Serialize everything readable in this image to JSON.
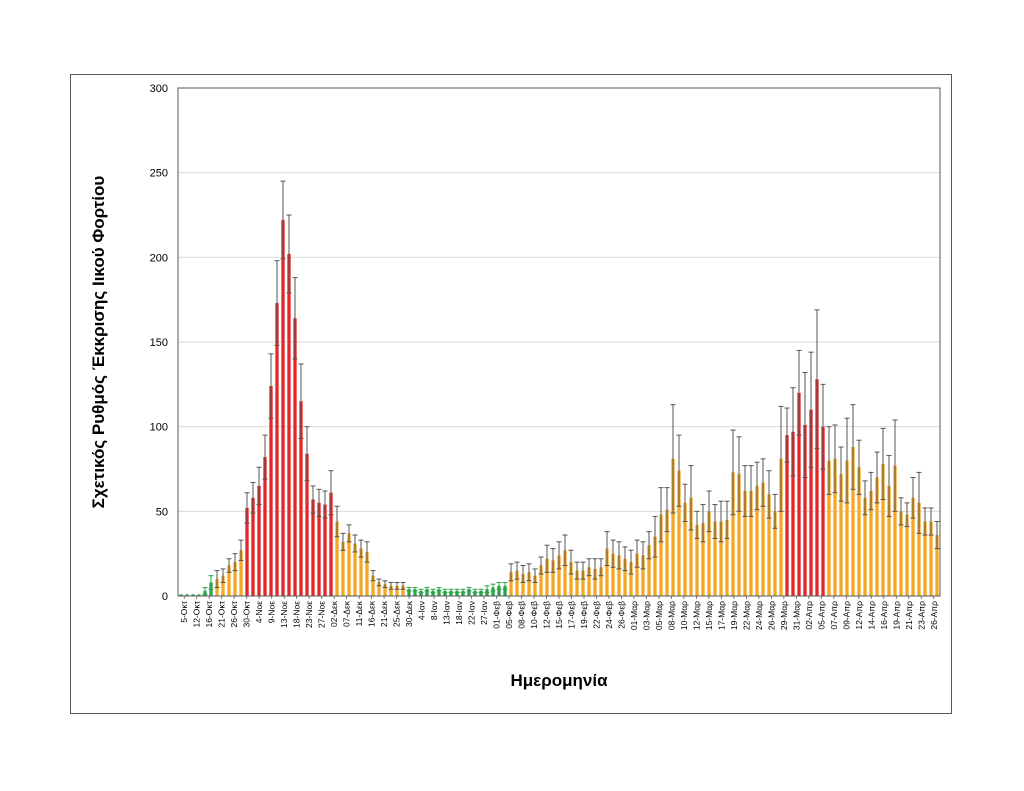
{
  "chart_data": {
    "type": "bar",
    "title": "",
    "xlabel": "Ημερομηνία",
    "ylabel": "Σχετικός Ρυθμός Έκκρισης Ιικού Φορτίου",
    "ylim": [
      0,
      300
    ],
    "yticks": [
      0,
      50,
      100,
      150,
      200,
      250,
      300
    ],
    "grid": true,
    "legend": "none",
    "colors": {
      "green": "#2ca24a",
      "orange": "#f5a623",
      "red": "#e3262a",
      "error": "#555555",
      "grid": "#d9d9d9"
    },
    "tick_labels": [
      "5-Οκτ",
      "12-Οκτ",
      "16-Οκτ",
      "21-Οκτ",
      "26-Οκτ",
      "30-Οκτ",
      "4-Νοε",
      "9-Νοε",
      "13-Νοε",
      "18-Νοε",
      "23-Νοε",
      "27-Νοε",
      "02-Δεκ",
      "07-Δεκ",
      "11-Δεκ",
      "16-Δεκ",
      "21-Δεκ",
      "25-Δεκ",
      "30-Δεκ",
      "4-Ιαν",
      "8-Ιαν",
      "13-Ιαν",
      "18-Ιαν",
      "22-Ιαν",
      "27-Ιαν",
      "01-Φεβ",
      "05-Φεβ",
      "08-Φεβ",
      "10-Φεβ",
      "12-Φεβ",
      "15-Φεβ",
      "17-Φεβ",
      "19-Φεβ",
      "22-Φεβ",
      "24-Φεβ",
      "26-Φεβ",
      "01-Μαρ",
      "03-Μαρ",
      "05-Μαρ",
      "08-Μαρ",
      "10-Μαρ",
      "12-Μαρ",
      "15-Μαρ",
      "17-Μαρ",
      "19-Μαρ",
      "22-Μαρ",
      "24-Μαρ",
      "26-Μαρ",
      "29-Μαρ",
      "31-Μαρ",
      "02-Απρ",
      "05-Απρ",
      "07-Απρ",
      "09-Απρ",
      "12-Απρ",
      "14-Απρ",
      "16-Απρ",
      "19-Απρ",
      "21-Απρ",
      "23-Απρ",
      "26-Απρ"
    ],
    "values": [
      1,
      1,
      1,
      1,
      3,
      8,
      10,
      12,
      18,
      20,
      27,
      52,
      58,
      65,
      82,
      124,
      173,
      222,
      202,
      164,
      115,
      84,
      57,
      55,
      54,
      61,
      44,
      32,
      37,
      31,
      28,
      26,
      12,
      8,
      7,
      6,
      6,
      6,
      4,
      4,
      3,
      4,
      3,
      4,
      3,
      3,
      3,
      3,
      4,
      3,
      3,
      4,
      5,
      6,
      6,
      14,
      15,
      13,
      14,
      12,
      18,
      22,
      21,
      24,
      27,
      20,
      15,
      15,
      17,
      16,
      17,
      28,
      25,
      24,
      22,
      20,
      25,
      24,
      30,
      35,
      48,
      51,
      81,
      74,
      55,
      58,
      42,
      43,
      50,
      44,
      44,
      45,
      73,
      72,
      62,
      62,
      65,
      67,
      60,
      50,
      81,
      95,
      97,
      120,
      101,
      110,
      128,
      100,
      80,
      81,
      72,
      80,
      88,
      76,
      58,
      62,
      70,
      78,
      65,
      77,
      50,
      48,
      58,
      55,
      44,
      44,
      36
    ],
    "errors": [
      0,
      0,
      0,
      0,
      2,
      4,
      5,
      4,
      4,
      5,
      6,
      9,
      9,
      11,
      13,
      19,
      25,
      23,
      23,
      24,
      22,
      16,
      8,
      8,
      8,
      13,
      9,
      5,
      5,
      5,
      5,
      6,
      3,
      2,
      2,
      2,
      2,
      2,
      1,
      1,
      1,
      1,
      1,
      1,
      1,
      1,
      1,
      1,
      1,
      1,
      1,
      2,
      2,
      2,
      2,
      5,
      5,
      5,
      5,
      4,
      5,
      8,
      7,
      8,
      9,
      7,
      5,
      5,
      5,
      6,
      5,
      10,
      8,
      8,
      7,
      7,
      8,
      8,
      8,
      12,
      16,
      13,
      32,
      21,
      11,
      19,
      8,
      11,
      12,
      10,
      12,
      11,
      25,
      22,
      15,
      15,
      14,
      14,
      14,
      10,
      31,
      16,
      26,
      25,
      31,
      34,
      41,
      25,
      20,
      20,
      16,
      25,
      25,
      16,
      10,
      11,
      15,
      21,
      18,
      27,
      8,
      7,
      12,
      18,
      8,
      8,
      8
    ],
    "colors_seq": [
      "g",
      "g",
      "g",
      "g",
      "g",
      "g",
      "o",
      "o",
      "o",
      "o",
      "o",
      "r",
      "r",
      "r",
      "r",
      "r",
      "r",
      "r",
      "r",
      "r",
      "r",
      "r",
      "r",
      "r",
      "r",
      "r",
      "o",
      "o",
      "o",
      "o",
      "o",
      "o",
      "o",
      "o",
      "o",
      "o",
      "o",
      "o",
      "g",
      "g",
      "g",
      "g",
      "g",
      "g",
      "g",
      "g",
      "g",
      "g",
      "g",
      "g",
      "g",
      "g",
      "g",
      "g",
      "g",
      "o",
      "o",
      "o",
      "o",
      "o",
      "o",
      "o",
      "o",
      "o",
      "o",
      "o",
      "o",
      "o",
      "o",
      "o",
      "o",
      "o",
      "o",
      "o",
      "o",
      "o",
      "o",
      "o",
      "o",
      "o",
      "o",
      "o",
      "o",
      "o",
      "o",
      "o",
      "o",
      "o",
      "o",
      "o",
      "o",
      "o",
      "o",
      "o",
      "o",
      "o",
      "o",
      "o",
      "o",
      "o",
      "o",
      "r",
      "r",
      "r",
      "r",
      "r",
      "r",
      "r",
      "o",
      "o",
      "o",
      "o",
      "o",
      "o",
      "o",
      "o",
      "o",
      "o",
      "o",
      "o",
      "o",
      "o",
      "o",
      "o",
      "o",
      "o",
      "o"
    ]
  }
}
